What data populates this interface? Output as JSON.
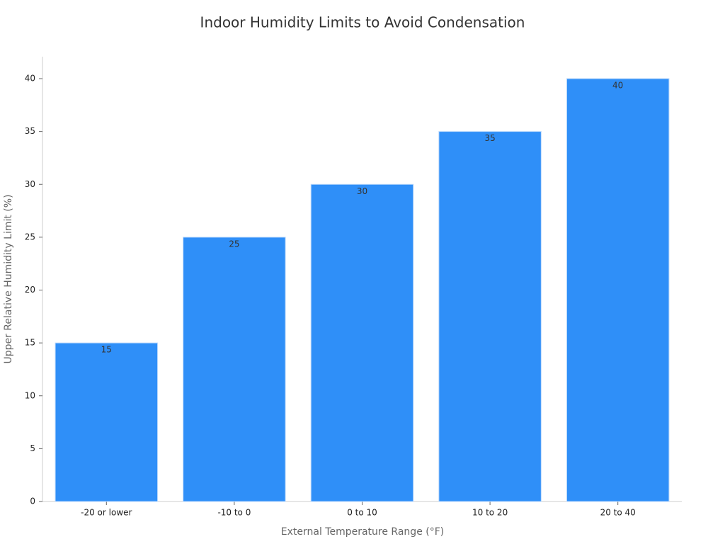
{
  "chart_data": {
    "type": "bar",
    "title": "Indoor Humidity Limits to Avoid Condensation",
    "x_label": "External Temperature Range (°F)",
    "y_label": "Upper Relative Humidity Limit (%)",
    "categories": [
      "-20 or lower",
      "-10 to 0",
      "0 to 10",
      "10 to 20",
      "20 to 40"
    ],
    "values": [
      15,
      25,
      30,
      35,
      40
    ],
    "color": "#2f8ff8",
    "ylim": [
      0,
      42
    ],
    "yticks": [
      0,
      5,
      10,
      15,
      20,
      25,
      30,
      35,
      40
    ],
    "grid": false
  }
}
